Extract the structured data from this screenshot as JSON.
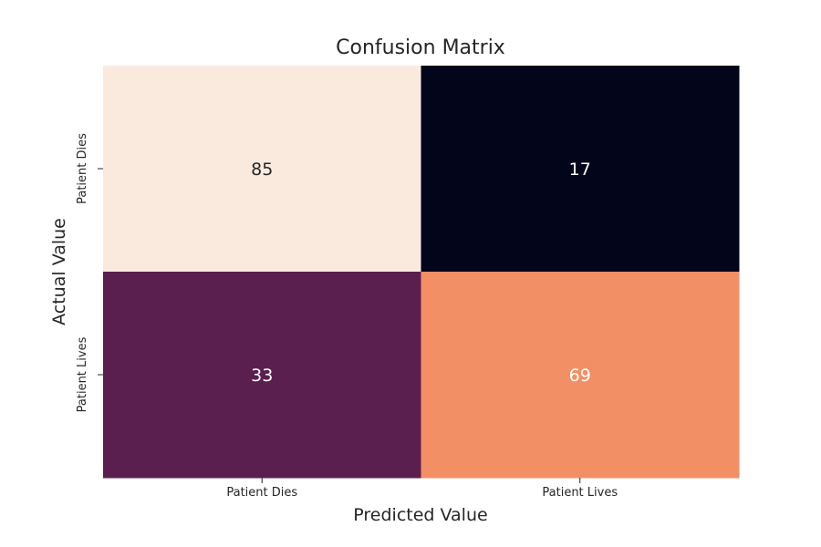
{
  "chart_data": {
    "type": "heatmap",
    "title": "Confusion Matrix",
    "xlabel": "Predicted Value",
    "ylabel": "Actual Value",
    "x_categories": [
      "Patient Dies",
      "Patient Lives"
    ],
    "y_categories": [
      "Patient Dies",
      "Patient Lives"
    ],
    "values": [
      [
        85,
        17
      ],
      [
        33,
        69
      ]
    ],
    "colorbar": false,
    "colors": [
      [
        "#faeade",
        "#03051a"
      ],
      [
        "#5b1f4f",
        "#f38f65"
      ]
    ],
    "annotation_colors": [
      [
        "#262626",
        "#ffffff"
      ],
      [
        "#ffffff",
        "#ffffff"
      ]
    ]
  }
}
